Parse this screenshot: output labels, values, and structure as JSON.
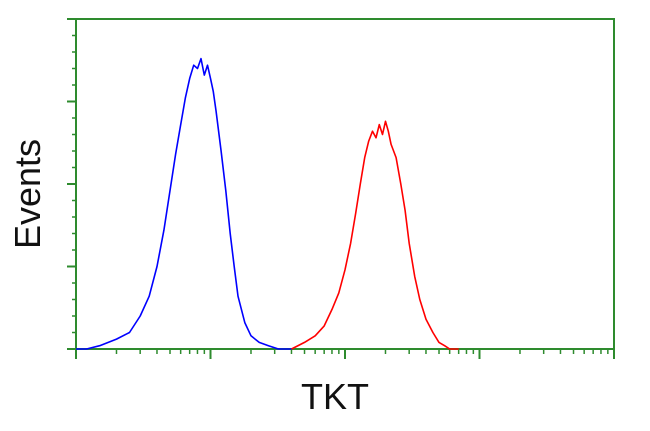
{
  "chart_data": {
    "type": "line",
    "title": "",
    "xlabel": "TKT",
    "ylabel": "Events",
    "x_scale": "log",
    "xlim": [
      1,
      10000
    ],
    "ylim": [
      0,
      1
    ],
    "grid": false,
    "series": [
      {
        "color": "#0000ff",
        "x": [
          1.0,
          1.2,
          1.5,
          2.0,
          2.5,
          3.0,
          3.5,
          4.0,
          4.5,
          5.0,
          5.5,
          6.0,
          6.5,
          7.0,
          7.5,
          8.0,
          8.5,
          9.0,
          9.5,
          10.0,
          10.5,
          11.0,
          12.0,
          13.0,
          14.0,
          15.0,
          16.0,
          18.0,
          20.0,
          23.0,
          27.0,
          32.0,
          40.0
        ],
        "y": [
          0.0,
          0.0,
          0.01,
          0.03,
          0.05,
          0.1,
          0.16,
          0.25,
          0.36,
          0.48,
          0.59,
          0.68,
          0.76,
          0.82,
          0.86,
          0.85,
          0.88,
          0.83,
          0.86,
          0.82,
          0.78,
          0.72,
          0.6,
          0.48,
          0.35,
          0.25,
          0.16,
          0.08,
          0.04,
          0.02,
          0.01,
          0.0,
          0.0
        ]
      },
      {
        "color": "#ff0000",
        "x": [
          40.0,
          50.0,
          60.0,
          70.0,
          80.0,
          90.0,
          100.0,
          110.0,
          120.0,
          130.0,
          140.0,
          150.0,
          160.0,
          170.0,
          180.0,
          190.0,
          200.0,
          210.0,
          220.0,
          240.0,
          260.0,
          280.0,
          300.0,
          330.0,
          360.0,
          400.0,
          450.0,
          500.0,
          550.0,
          600.0,
          700.0
        ],
        "y": [
          0.0,
          0.02,
          0.04,
          0.07,
          0.12,
          0.17,
          0.24,
          0.32,
          0.41,
          0.5,
          0.58,
          0.63,
          0.66,
          0.64,
          0.68,
          0.65,
          0.69,
          0.66,
          0.62,
          0.58,
          0.5,
          0.42,
          0.32,
          0.22,
          0.15,
          0.09,
          0.05,
          0.02,
          0.01,
          0.0,
          0.0
        ]
      }
    ]
  }
}
